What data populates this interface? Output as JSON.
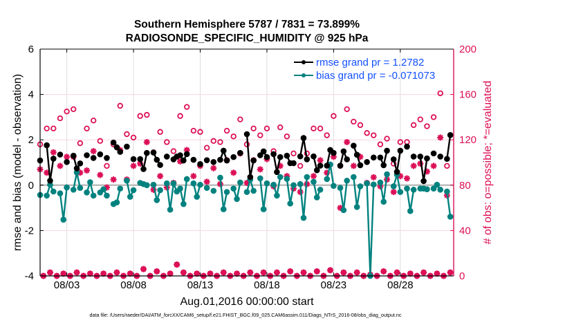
{
  "chart_data": {
    "type": "line",
    "title": [
      "Southern Hemisphere 5787 / 7831 = 73.899%",
      "RADIOSONDE_SPECIFIC_HUMIDITY @ 925 hPa"
    ],
    "xlabel": "Aug.01,2016 00:00:00 start",
    "ylabel": "rmse and bias (model - observation)",
    "ylabel_right": "# of obs: o=possible; *=evaluated",
    "footnote": "data file: /Users/raeder/DAI/ATM_forcXX/CAM6_setup/f.e21.FHIST_BGC.f09_025.CAM6assim.011/Diags_NTrS_2016-08/obs_diag_output.nc",
    "xlim": [
      "2016-08-01T00",
      "2016-09-01T00"
    ],
    "ylim": [
      -4,
      6
    ],
    "ylim_right": [
      0,
      200
    ],
    "xticks": [
      "2016-08-03",
      "2016-08-08",
      "2016-08-13",
      "2016-08-18",
      "2016-08-23",
      "2016-08-28"
    ],
    "xtick_labels": [
      "08/03",
      "08/08",
      "08/13",
      "08/18",
      "08/23",
      "08/28"
    ],
    "yticks": [
      6,
      4,
      2,
      0,
      -2,
      -4
    ],
    "yticks_right": [
      200,
      160,
      120,
      80,
      40,
      0
    ],
    "grid": true,
    "legend_position": "top-right",
    "colors": {
      "rmse": "#000000",
      "bias": "#00827f",
      "obs": "#dc0f57",
      "legend_text": "#1451ff",
      "zero_line": "#bdbdbd"
    },
    "times": [
      "2016-08-01T00",
      "2016-08-01T06",
      "2016-08-01T12",
      "2016-08-01T18",
      "2016-08-02T00",
      "2016-08-02T06",
      "2016-08-02T12",
      "2016-08-02T18",
      "2016-08-03T00",
      "2016-08-03T06",
      "2016-08-03T12",
      "2016-08-03T18",
      "2016-08-04T00",
      "2016-08-04T06",
      "2016-08-04T12",
      "2016-08-04T18",
      "2016-08-05T00",
      "2016-08-05T06",
      "2016-08-05T12",
      "2016-08-05T18",
      "2016-08-06T00",
      "2016-08-06T06",
      "2016-08-06T12",
      "2016-08-06T18",
      "2016-08-07T00",
      "2016-08-07T06",
      "2016-08-07T12",
      "2016-08-07T18",
      "2016-08-08T00",
      "2016-08-08T06",
      "2016-08-08T12",
      "2016-08-08T18",
      "2016-08-09T00",
      "2016-08-09T06",
      "2016-08-09T12",
      "2016-08-09T18",
      "2016-08-10T00",
      "2016-08-10T06",
      "2016-08-10T12",
      "2016-08-10T18",
      "2016-08-11T00",
      "2016-08-11T06",
      "2016-08-11T12",
      "2016-08-11T18",
      "2016-08-12T00",
      "2016-08-12T06",
      "2016-08-12T12",
      "2016-08-12T18",
      "2016-08-13T00",
      "2016-08-13T06",
      "2016-08-13T12",
      "2016-08-13T18",
      "2016-08-14T00",
      "2016-08-14T06",
      "2016-08-14T12",
      "2016-08-14T18",
      "2016-08-15T00",
      "2016-08-15T06",
      "2016-08-15T12",
      "2016-08-15T18",
      "2016-08-16T00",
      "2016-08-16T06",
      "2016-08-16T12",
      "2016-08-16T18",
      "2016-08-17T00",
      "2016-08-17T06",
      "2016-08-17T12",
      "2016-08-17T18",
      "2016-08-18T00",
      "2016-08-18T06",
      "2016-08-18T12",
      "2016-08-18T18",
      "2016-08-19T00",
      "2016-08-19T06",
      "2016-08-19T12",
      "2016-08-19T18",
      "2016-08-20T00",
      "2016-08-20T06",
      "2016-08-20T12",
      "2016-08-20T18",
      "2016-08-21T00",
      "2016-08-21T06",
      "2016-08-21T12",
      "2016-08-21T18",
      "2016-08-22T00",
      "2016-08-22T06",
      "2016-08-22T12",
      "2016-08-22T18",
      "2016-08-23T00",
      "2016-08-23T06",
      "2016-08-23T12",
      "2016-08-23T18",
      "2016-08-24T00",
      "2016-08-24T06",
      "2016-08-24T12",
      "2016-08-24T18",
      "2016-08-25T00",
      "2016-08-25T06",
      "2016-08-25T12",
      "2016-08-25T18",
      "2016-08-26T00",
      "2016-08-26T06",
      "2016-08-26T12",
      "2016-08-26T18",
      "2016-08-27T00",
      "2016-08-27T06",
      "2016-08-27T12",
      "2016-08-27T18",
      "2016-08-28T00",
      "2016-08-28T06",
      "2016-08-28T12",
      "2016-08-28T18",
      "2016-08-29T00",
      "2016-08-29T06",
      "2016-08-29T12",
      "2016-08-29T18",
      "2016-08-30T00",
      "2016-08-30T06",
      "2016-08-30T12",
      "2016-08-30T18",
      "2016-08-31T00",
      "2016-08-31T06",
      "2016-08-31T12",
      "2016-08-31T18"
    ],
    "series": [
      {
        "name": "rmse grand pr = 1.2782",
        "axis": "left",
        "marker": "filled-circle",
        "values": [
          1.09,
          null,
          1.76,
          0.2,
          1.17,
          null,
          1.35,
          null,
          1.02,
          null,
          1.3,
          0.74,
          0.96,
          null,
          1.32,
          null,
          1.2,
          null,
          1.36,
          null,
          1.2,
          null,
          1.88,
          1.67,
          1.47,
          null,
          1.7,
          null,
          1.15,
          null,
          1.15,
          0.71,
          1.42,
          null,
          1.44,
          1.12,
          0.89,
          null,
          1.26,
          null,
          1.14,
          1.26,
          1.32,
          1.09,
          1.37,
          null,
          1.12,
          null,
          0.93,
          null,
          1.1,
          null,
          1.02,
          null,
          1.12,
          1.52,
          1.09,
          null,
          1.24,
          null,
          1.42,
          null,
          2.25,
          0.36,
          1.09,
          null,
          1.32,
          1.49,
          1.24,
          null,
          1.37,
          0.58,
          1.24,
          null,
          1.3,
          0.97,
          0.97,
          null,
          1.27,
          2.08,
          1.14,
          null,
          1.27,
          0.66,
          0.86,
          null,
          0.86,
          1.55,
          1.42,
          null,
          0.86,
          1.49,
          1.14,
          null,
          1.74,
          1.34,
          0.88,
          null,
          1.02,
          null,
          1.22,
          null,
          1.22,
          0.88,
          1.52,
          null,
          1.14,
          0.59,
          1.52,
          null,
          1.7,
          null,
          1.26,
          null,
          1.26,
          0.18,
          1.18,
          null,
          1.4,
          null,
          1.26,
          null,
          1.16,
          2.21
        ]
      },
      {
        "name": "bias grand pr = -0.071073",
        "axis": "left",
        "marker": "filled-circle",
        "values": [
          -0.43,
          null,
          -0.46,
          0.02,
          -0.28,
          null,
          -0.36,
          -1.52,
          -0.1,
          null,
          -0.2,
          0.56,
          -0.12,
          null,
          -0.32,
          0.13,
          -0.46,
          null,
          -0.32,
          -0.18,
          -0.46,
          null,
          -0.83,
          -0.76,
          -0.15,
          null,
          0.2,
          -0.51,
          -0.22,
          null,
          0.1,
          0.05,
          0.0,
          null,
          0.02,
          -0.66,
          -0.22,
          null,
          0.08,
          -1.08,
          0.08,
          -0.28,
          -0.15,
          -0.83,
          0.27,
          null,
          0.08,
          -0.51,
          0.02,
          null,
          -0.12,
          null,
          -0.25,
          null,
          0.33,
          -1.06,
          -0.3,
          null,
          -0.15,
          -0.61,
          0.12,
          null,
          -0.3,
          0.25,
          -0.25,
          null,
          0.3,
          -1.06,
          0.08,
          null,
          0.02,
          -0.46,
          0.36,
          null,
          0.28,
          -0.81,
          0.0,
          null,
          0.05,
          -1.44,
          0.36,
          null,
          0.15,
          -0.54,
          -0.2,
          null,
          0.27,
          0.91,
          -0.03,
          null,
          -0.12,
          -1.1,
          0.2,
          null,
          0.36,
          -0.96,
          -0.05,
          null,
          0.08,
          -4.0,
          0.03,
          null,
          0.12,
          -0.73,
          0.48,
          null,
          -0.05,
          0.47,
          -0.3,
          null,
          -0.15,
          -1.14,
          -0.2,
          null,
          -0.15,
          -0.15,
          -0.18,
          null,
          -0.15,
          0.02,
          -0.2,
          null,
          -0.28,
          -1.39
        ]
      },
      {
        "name": "possible",
        "axis": "right",
        "marker": "open-circle",
        "values": [
          116,
          0,
          130,
          3,
          130,
          0,
          139,
          2,
          145,
          0,
          147,
          3,
          117,
          0,
          130,
          2,
          137,
          0,
          119,
          2,
          97,
          0,
          116,
          3,
          150,
          0,
          125,
          2,
          122,
          0,
          141,
          6,
          142,
          0,
          109,
          4,
          127,
          0,
          118,
          2,
          110,
          10,
          141,
          3,
          149,
          0,
          128,
          2,
          127,
          0,
          113,
          2,
          119,
          0,
          118,
          3,
          128,
          0,
          123,
          2,
          138,
          0,
          116,
          3,
          130,
          0,
          124,
          3,
          130,
          0,
          110,
          3,
          131,
          0,
          123,
          4,
          108,
          0,
          97,
          3,
          108,
          0,
          130,
          4,
          130,
          0,
          124,
          5,
          141,
          0,
          97,
          3,
          147,
          0,
          136,
          3,
          133,
          0,
          126,
          1,
          124,
          0,
          116,
          4,
          121,
          0,
          99,
          3,
          118,
          0,
          118,
          2,
          133,
          0,
          138,
          3,
          132,
          0,
          140,
          2,
          161,
          0,
          97,
          3
        ]
      },
      {
        "name": "evaluated",
        "axis": "right",
        "marker": "asterisk",
        "values": [
          94,
          0,
          91,
          3,
          109,
          0,
          97,
          2,
          105,
          0,
          105,
          3,
          91,
          0,
          93,
          2,
          110,
          0,
          89,
          2,
          78,
          0,
          85,
          3,
          111,
          0,
          85,
          2,
          97,
          0,
          99,
          6,
          118,
          0,
          76,
          4,
          88,
          0,
          78,
          2,
          82,
          10,
          101,
          3,
          111,
          0,
          88,
          2,
          97,
          0,
          83,
          2,
          95,
          0,
          81,
          3,
          102,
          0,
          91,
          2,
          108,
          0,
          82,
          3,
          102,
          0,
          94,
          3,
          103,
          0,
          79,
          3,
          97,
          0,
          88,
          4,
          77,
          0,
          74,
          3,
          81,
          0,
          88,
          4,
          102,
          0,
          91,
          5,
          105,
          0,
          60,
          3,
          118,
          0,
          97,
          3,
          105,
          0,
          82,
          1,
          87,
          0,
          79,
          4,
          85,
          0,
          74,
          3,
          88,
          0,
          86,
          2,
          97,
          0,
          99,
          3,
          92,
          0,
          97,
          2,
          122,
          0,
          71,
          3
        ]
      }
    ]
  }
}
